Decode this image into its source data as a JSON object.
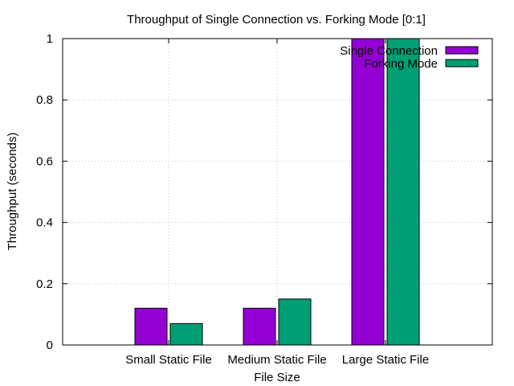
{
  "chart_data": {
    "type": "bar",
    "title": "Throughput of Single Connection vs. Forking Mode [0:1]",
    "xlabel": "File Size",
    "ylabel": "Throughput (seconds)",
    "categories": [
      "Small Static File",
      "Medium Static File",
      "Large Static File"
    ],
    "series": [
      {
        "name": "Single Connection",
        "color": "#9400d3",
        "values": [
          0.12,
          0.12,
          1.0
        ]
      },
      {
        "name": "Forking Mode",
        "color": "#009e73",
        "values": [
          0.07,
          0.15,
          1.0
        ]
      }
    ],
    "ylim": [
      0,
      1
    ],
    "yticks": [
      "0",
      "0.2",
      "0.4",
      "0.6",
      "0.8",
      "1"
    ],
    "grid": true,
    "legend_position": "top-right"
  }
}
